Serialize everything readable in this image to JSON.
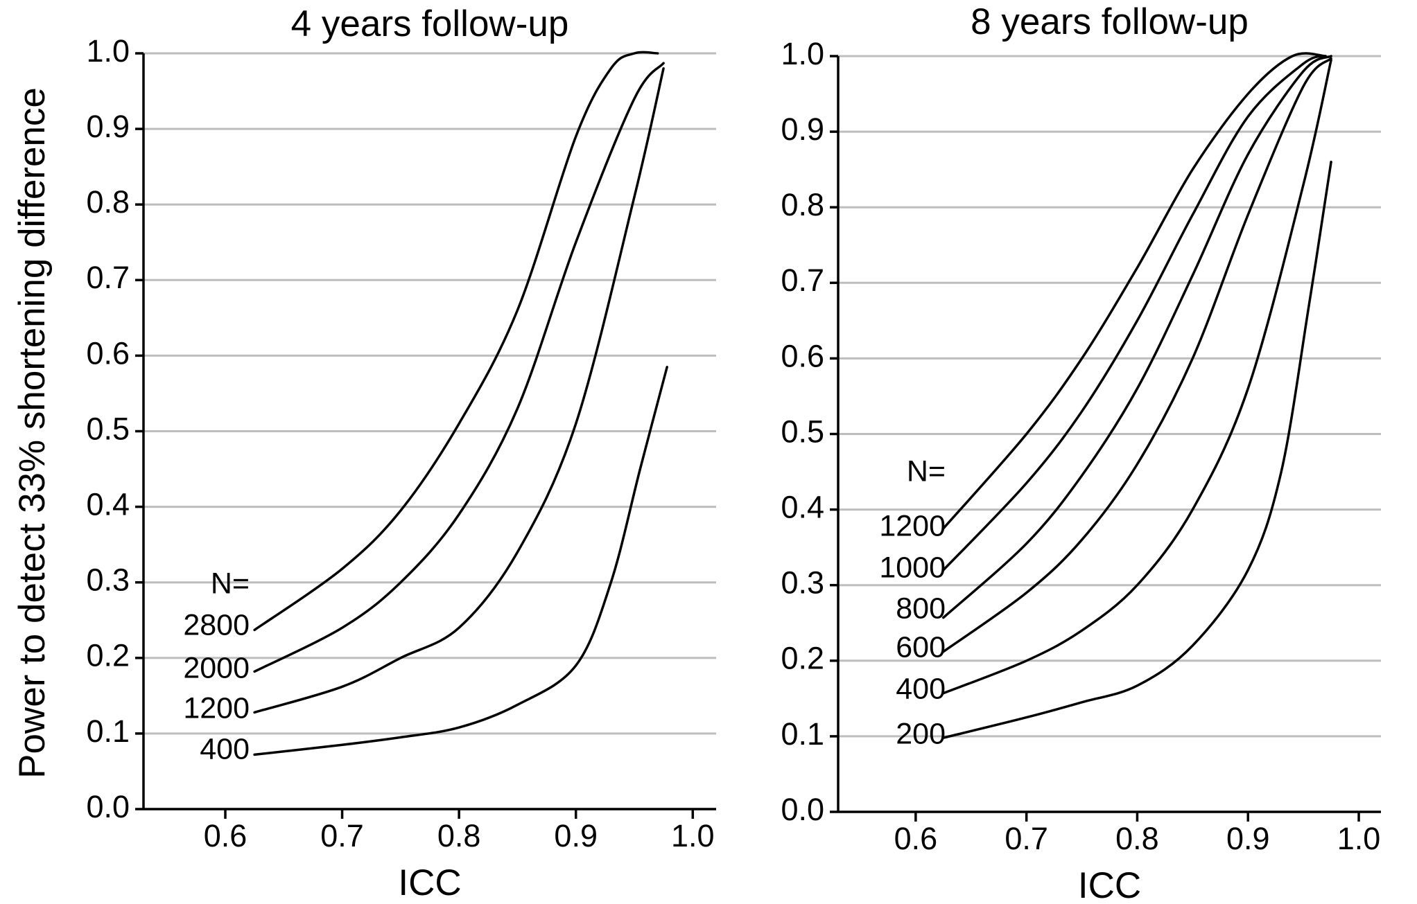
{
  "ylabel": "Power to detect 33% shortening difference",
  "chart_data": [
    {
      "type": "line",
      "title": "4 years follow-up",
      "xlabel": "ICC",
      "xlim": [
        0.53,
        1.02
      ],
      "ylim": [
        0.0,
        1.0
      ],
      "xticks": [
        "0.6",
        "0.7",
        "0.8",
        "0.9",
        "1.0"
      ],
      "yticks": [
        "0.0",
        "0.1",
        "0.2",
        "0.3",
        "0.4",
        "0.5",
        "0.6",
        "0.7",
        "0.8",
        "0.9",
        "1.0"
      ],
      "grid": "horizontal",
      "legend_header": "N=",
      "series": [
        {
          "name": "2800",
          "points": [
            [
              0.625,
              0.237
            ],
            [
              0.7,
              0.318
            ],
            [
              0.75,
              0.395
            ],
            [
              0.8,
              0.51
            ],
            [
              0.85,
              0.66
            ],
            [
              0.9,
              0.89
            ],
            [
              0.93,
              0.98
            ],
            [
              0.95,
              1.0
            ],
            [
              0.97,
              1.0
            ]
          ]
        },
        {
          "name": "2000",
          "points": [
            [
              0.625,
              0.182
            ],
            [
              0.7,
              0.24
            ],
            [
              0.75,
              0.3
            ],
            [
              0.8,
              0.39
            ],
            [
              0.85,
              0.53
            ],
            [
              0.9,
              0.75
            ],
            [
              0.95,
              0.94
            ],
            [
              0.975,
              0.987
            ]
          ]
        },
        {
          "name": "1200",
          "points": [
            [
              0.625,
              0.128
            ],
            [
              0.7,
              0.162
            ],
            [
              0.75,
              0.2
            ],
            [
              0.8,
              0.24
            ],
            [
              0.85,
              0.34
            ],
            [
              0.9,
              0.51
            ],
            [
              0.95,
              0.81
            ],
            [
              0.975,
              0.98
            ]
          ]
        },
        {
          "name": "400",
          "points": [
            [
              0.625,
              0.072
            ],
            [
              0.7,
              0.085
            ],
            [
              0.75,
              0.095
            ],
            [
              0.8,
              0.108
            ],
            [
              0.85,
              0.138
            ],
            [
              0.9,
              0.19
            ],
            [
              0.93,
              0.3
            ],
            [
              0.955,
              0.45
            ],
            [
              0.978,
              0.585
            ]
          ]
        }
      ]
    },
    {
      "type": "line",
      "title": "8 years follow-up",
      "xlabel": "ICC",
      "xlim": [
        0.53,
        1.02
      ],
      "ylim": [
        0.0,
        1.0
      ],
      "xticks": [
        "0.6",
        "0.7",
        "0.8",
        "0.9",
        "1.0"
      ],
      "yticks": [
        "0.0",
        "0.1",
        "0.2",
        "0.3",
        "0.4",
        "0.5",
        "0.6",
        "0.7",
        "0.8",
        "0.9",
        "1.0"
      ],
      "grid": "horizontal",
      "legend_header": "N=",
      "series": [
        {
          "name": "1200",
          "points": [
            [
              0.625,
              0.375
            ],
            [
              0.7,
              0.5
            ],
            [
              0.75,
              0.6
            ],
            [
              0.8,
              0.72
            ],
            [
              0.85,
              0.85
            ],
            [
              0.9,
              0.95
            ],
            [
              0.94,
              1.0
            ],
            [
              0.97,
              1.0
            ]
          ]
        },
        {
          "name": "1000",
          "points": [
            [
              0.625,
              0.32
            ],
            [
              0.7,
              0.435
            ],
            [
              0.75,
              0.53
            ],
            [
              0.8,
              0.65
            ],
            [
              0.85,
              0.79
            ],
            [
              0.9,
              0.92
            ],
            [
              0.95,
              0.99
            ],
            [
              0.97,
              1.0
            ]
          ]
        },
        {
          "name": "800",
          "points": [
            [
              0.625,
              0.257
            ],
            [
              0.7,
              0.355
            ],
            [
              0.75,
              0.445
            ],
            [
              0.8,
              0.56
            ],
            [
              0.85,
              0.71
            ],
            [
              0.9,
              0.87
            ],
            [
              0.95,
              0.98
            ],
            [
              0.975,
              1.0
            ]
          ]
        },
        {
          "name": "600",
          "points": [
            [
              0.625,
              0.212
            ],
            [
              0.7,
              0.29
            ],
            [
              0.75,
              0.36
            ],
            [
              0.8,
              0.46
            ],
            [
              0.85,
              0.6
            ],
            [
              0.9,
              0.79
            ],
            [
              0.95,
              0.96
            ],
            [
              0.975,
              0.997
            ]
          ]
        },
        {
          "name": "400",
          "points": [
            [
              0.625,
              0.157
            ],
            [
              0.7,
              0.2
            ],
            [
              0.75,
              0.24
            ],
            [
              0.8,
              0.3
            ],
            [
              0.85,
              0.4
            ],
            [
              0.9,
              0.56
            ],
            [
              0.95,
              0.83
            ],
            [
              0.975,
              0.995
            ]
          ]
        },
        {
          "name": "200",
          "points": [
            [
              0.625,
              0.098
            ],
            [
              0.7,
              0.125
            ],
            [
              0.75,
              0.145
            ],
            [
              0.8,
              0.167
            ],
            [
              0.85,
              0.22
            ],
            [
              0.9,
              0.32
            ],
            [
              0.93,
              0.45
            ],
            [
              0.955,
              0.67
            ],
            [
              0.975,
              0.86
            ]
          ]
        }
      ]
    }
  ]
}
